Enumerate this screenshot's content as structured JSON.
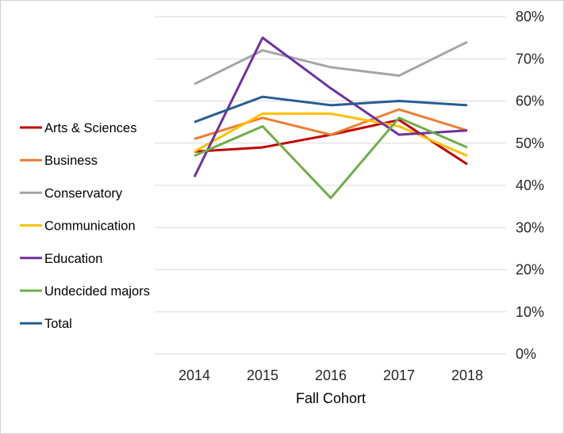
{
  "chart_data": {
    "type": "line",
    "title": "",
    "xlabel": "Fall Cohort",
    "ylabel": "",
    "x": [
      "2014",
      "2015",
      "2016",
      "2017",
      "2018"
    ],
    "ylim": [
      0,
      80
    ],
    "yticks": [
      0,
      10,
      20,
      30,
      40,
      50,
      60,
      70,
      80
    ],
    "ytick_labels": [
      "0%",
      "10%",
      "20%",
      "30%",
      "40%",
      "50%",
      "60%",
      "70%",
      "80%"
    ],
    "grid": "horizontal",
    "y_axis_side": "right",
    "legend_position": "left",
    "series": [
      {
        "name": "Arts & Sciences",
        "color": "#c00000",
        "values": [
          48,
          49,
          52,
          55.5,
          45
        ]
      },
      {
        "name": "Business",
        "color": "#ed7d31",
        "values": [
          51,
          56,
          52,
          58,
          53
        ]
      },
      {
        "name": "Conservatory",
        "color": "#a5a5a5",
        "values": [
          64,
          72,
          68,
          66,
          74
        ]
      },
      {
        "name": "Communication",
        "color": "#ffc000",
        "values": [
          48,
          57,
          57,
          54,
          47
        ]
      },
      {
        "name": "Education",
        "color": "#7030a0",
        "values": [
          42,
          75,
          63,
          52,
          53
        ]
      },
      {
        "name": "Undecided majors",
        "color": "#70ad47",
        "values": [
          47,
          54,
          37,
          56,
          49
        ]
      },
      {
        "name": "Total",
        "color": "#255e91",
        "values": [
          55,
          61,
          59,
          60,
          59
        ]
      }
    ]
  }
}
